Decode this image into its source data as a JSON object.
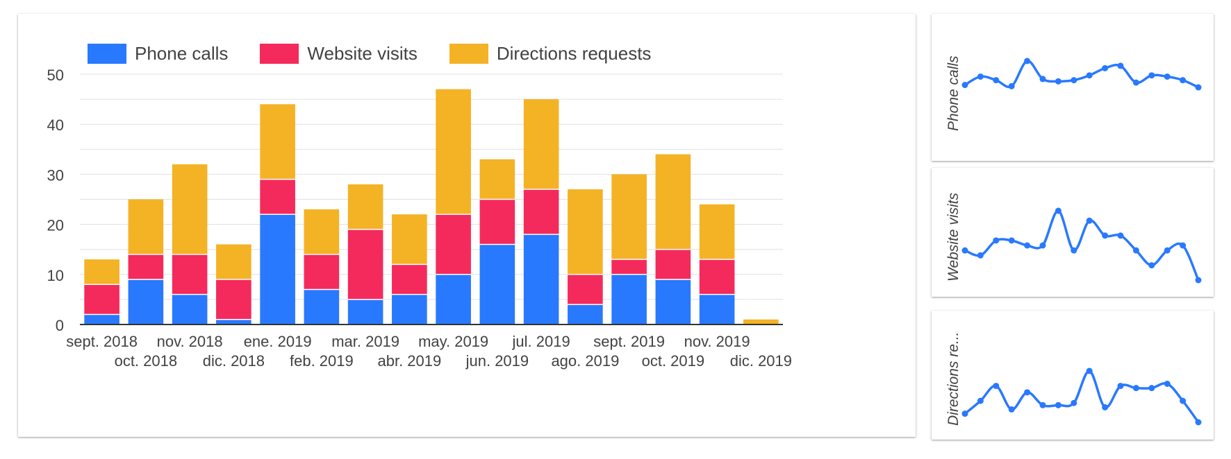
{
  "colors": {
    "phone": "#2979ff",
    "website": "#f52a5c",
    "directions": "#f4b225",
    "spark": "#2979ff",
    "grid": "#e0e0e0",
    "axis": "#333333"
  },
  "legend": [
    {
      "label": "Phone calls",
      "color": "#2979ff"
    },
    {
      "label": "Website visits",
      "color": "#f52a5c"
    },
    {
      "label": "Directions requests",
      "color": "#f4b225"
    }
  ],
  "chart_data": [
    {
      "type": "bar",
      "stacked": true,
      "categories": [
        "sept. 2018",
        "oct. 2018",
        "nov. 2018",
        "dic. 2018",
        "ene. 2019",
        "feb. 2019",
        "mar. 2019",
        "abr. 2019",
        "may. 2019",
        "jun. 2019",
        "jul. 2019",
        "ago. 2019",
        "sept. 2019",
        "oct. 2019",
        "nov. 2019",
        "dic. 2019"
      ],
      "series": [
        {
          "name": "Phone calls",
          "values": [
            2,
            9,
            6,
            1,
            22,
            7,
            5,
            6,
            10,
            16,
            18,
            4,
            10,
            9,
            6,
            0
          ]
        },
        {
          "name": "Website visits",
          "values": [
            6,
            5,
            8,
            8,
            7,
            7,
            14,
            6,
            12,
            9,
            9,
            6,
            3,
            6,
            7,
            0
          ]
        },
        {
          "name": "Directions requests",
          "values": [
            5,
            11,
            18,
            7,
            15,
            9,
            9,
            10,
            25,
            8,
            18,
            17,
            17,
            19,
            11,
            1
          ]
        }
      ],
      "yticks": [
        0,
        10,
        20,
        30,
        40,
        50
      ],
      "ylim": [
        0,
        55
      ],
      "grid": true,
      "legend_position": "top-left"
    },
    {
      "type": "line",
      "ylabel": "Phone calls",
      "values": [
        2,
        9,
        6,
        1,
        22,
        7,
        5,
        6,
        10,
        16,
        18,
        4,
        10,
        9,
        6,
        0
      ]
    },
    {
      "type": "line",
      "ylabel": "Website visits",
      "values": [
        6,
        5,
        8,
        8,
        7,
        7,
        14,
        6,
        12,
        9,
        9,
        6,
        3,
        6,
        7,
        0
      ]
    },
    {
      "type": "line",
      "ylabel": "Directions re...",
      "values": [
        5,
        11,
        18,
        7,
        15,
        9,
        9,
        10,
        25,
        8,
        18,
        17,
        17,
        19,
        11,
        1
      ]
    }
  ]
}
